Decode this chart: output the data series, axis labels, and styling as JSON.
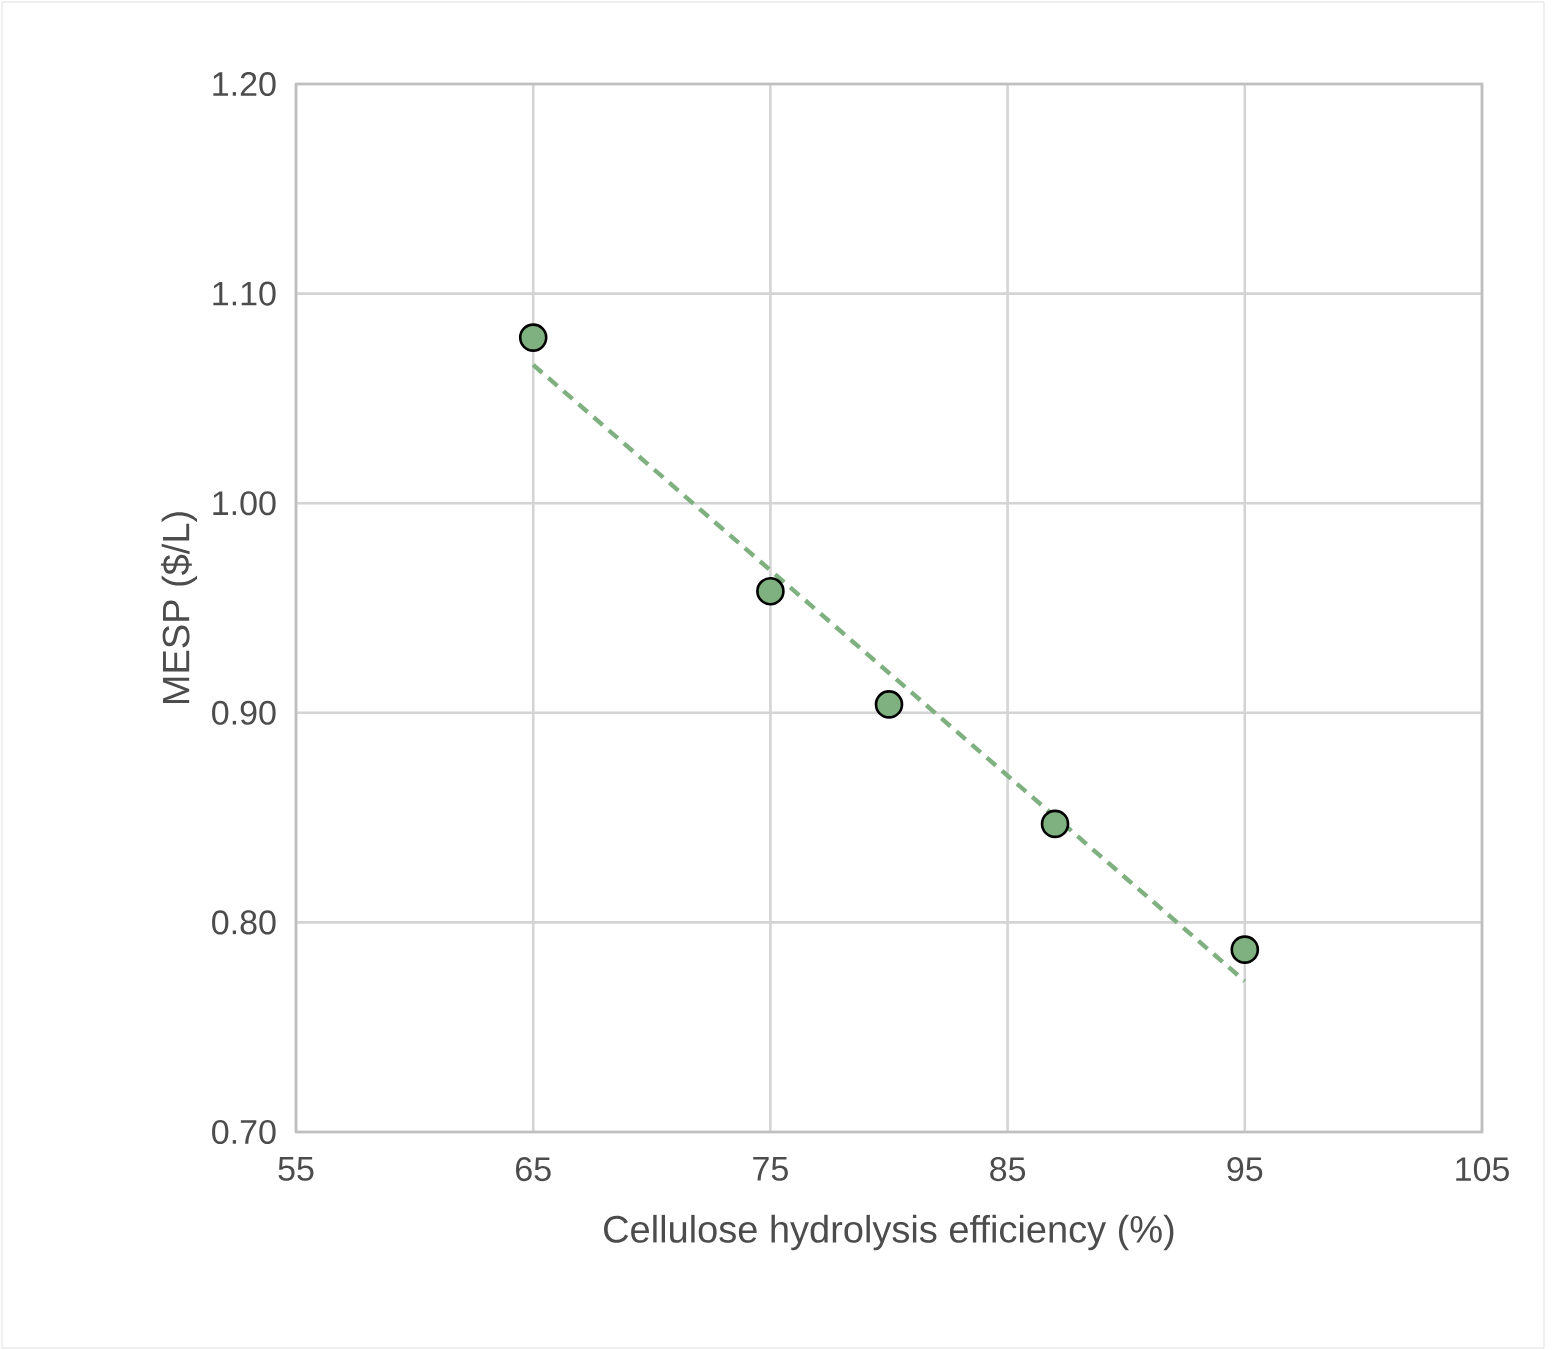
{
  "chart_data": {
    "type": "scatter",
    "xlabel": "Cellulose hydrolysis efficiency (%)",
    "ylabel": "MESP ($/L)",
    "xlim": [
      55,
      105
    ],
    "xticks": [
      55,
      65,
      75,
      85,
      95,
      105
    ],
    "ylim": [
      0.7,
      1.2
    ],
    "yticks": [
      {
        "value": 0.7,
        "label": "0.70"
      },
      {
        "value": 0.8,
        "label": "0.80"
      },
      {
        "value": 0.9,
        "label": "0.90"
      },
      {
        "value": 1.0,
        "label": "1.00"
      },
      {
        "value": 1.1,
        "label": "1.10"
      },
      {
        "value": 1.2,
        "label": "1.20"
      }
    ],
    "grid": true,
    "marker": "circle",
    "series": [
      {
        "color": "#7fb07f",
        "x": [
          65,
          75,
          80,
          87,
          95
        ],
        "values": [
          1.079,
          0.958,
          0.904,
          0.847,
          0.787
        ]
      },
      {
        "type": "line",
        "color": "#7fb07f",
        "line_style": "dashed",
        "marker": "none",
        "x": [
          65,
          95
        ],
        "values": [
          1.066,
          0.772
        ]
      }
    ]
  }
}
